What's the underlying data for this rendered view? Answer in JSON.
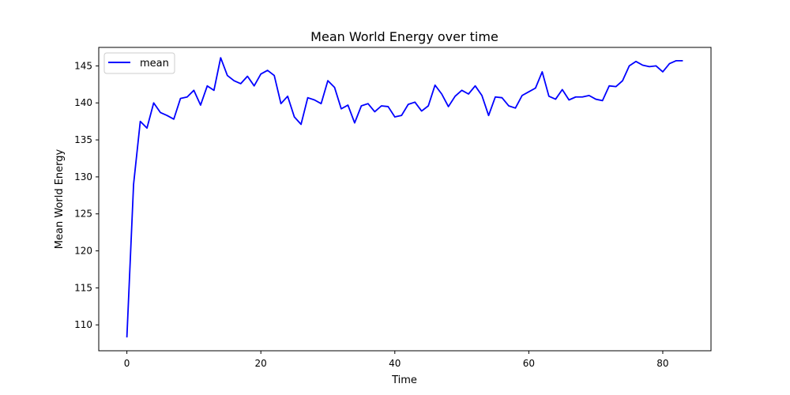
{
  "chart_data": {
    "type": "line",
    "title": "Mean World Energy over time",
    "xlabel": "Time",
    "ylabel": "Mean World Energy",
    "xlim": [
      -4.2,
      87.2
    ],
    "ylim": [
      106.5,
      147.5
    ],
    "xticks": [
      0,
      20,
      40,
      60,
      80
    ],
    "yticks": [
      110,
      115,
      120,
      125,
      130,
      135,
      140,
      145
    ],
    "grid": false,
    "legend": {
      "position": "top-left",
      "entries": [
        "mean"
      ]
    },
    "colors": {
      "mean": "#0000ff"
    },
    "series": [
      {
        "name": "mean",
        "x": [
          0,
          1,
          2,
          3,
          4,
          5,
          6,
          7,
          8,
          9,
          10,
          11,
          12,
          13,
          14,
          15,
          16,
          17,
          18,
          19,
          20,
          21,
          22,
          23,
          24,
          25,
          26,
          27,
          28,
          29,
          30,
          31,
          32,
          33,
          34,
          35,
          36,
          37,
          38,
          39,
          40,
          41,
          42,
          43,
          44,
          45,
          46,
          47,
          48,
          49,
          50,
          51,
          52,
          53,
          54,
          55,
          56,
          57,
          58,
          59,
          60,
          61,
          62,
          63,
          64,
          65,
          66,
          67,
          68,
          69,
          70,
          71,
          72,
          73,
          74,
          75,
          76,
          77,
          78,
          79,
          80,
          81,
          82,
          83
        ],
        "values": [
          108.3,
          129.0,
          137.5,
          136.6,
          140.0,
          138.7,
          138.3,
          137.8,
          140.6,
          140.8,
          141.7,
          139.7,
          142.3,
          141.7,
          146.1,
          143.7,
          143.0,
          142.6,
          143.6,
          142.3,
          143.9,
          144.4,
          143.7,
          139.9,
          140.9,
          138.1,
          137.1,
          140.7,
          140.4,
          139.9,
          143.0,
          142.1,
          139.2,
          139.7,
          137.3,
          139.6,
          139.9,
          138.8,
          139.6,
          139.5,
          138.1,
          138.3,
          139.8,
          140.1,
          138.9,
          139.6,
          142.4,
          141.2,
          139.5,
          140.9,
          141.7,
          141.2,
          142.3,
          141.0,
          138.3,
          140.8,
          140.7,
          139.6,
          139.3,
          141.0,
          141.5,
          142.0,
          144.2,
          140.9,
          140.5,
          141.8,
          140.4,
          140.8,
          140.8,
          141.0,
          140.5,
          140.3,
          142.3,
          142.2,
          143.0,
          145.0,
          145.6,
          145.1,
          144.9,
          145.0,
          144.2,
          145.3,
          145.7,
          145.7
        ]
      }
    ]
  }
}
